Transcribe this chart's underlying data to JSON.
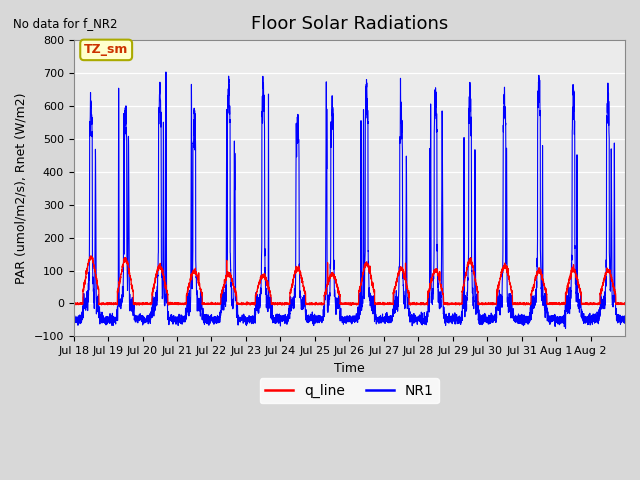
{
  "title": "Floor Solar Radiations",
  "xlabel": "Time",
  "ylabel": "PAR (umol/m2/s), Rnet (W/m2)",
  "ylim": [
    -100,
    800
  ],
  "yticks": [
    -100,
    0,
    100,
    200,
    300,
    400,
    500,
    600,
    700,
    800
  ],
  "xtick_labels": [
    "Jul 18",
    "Jul 19",
    "Jul 20",
    "Jul 21",
    "Jul 22",
    "Jul 23",
    "Jul 24",
    "Jul 25",
    "Jul 26",
    "Jul 27",
    "Jul 28",
    "Jul 29",
    "Jul 30",
    "Jul 31",
    "Aug 1",
    "Aug 2"
  ],
  "no_data_text": "No data for f_NR2",
  "legend_box_text": "TZ_sm",
  "legend_box_color": "#ffffcc",
  "legend_box_edge": "#aaaa00",
  "line_color_red": "#ff0000",
  "line_color_blue": "#0000ff",
  "legend_red_label": "q_line",
  "legend_blue_label": "NR1",
  "n_days": 16,
  "points_per_day": 288,
  "peak_blue": 670,
  "peak_red": 120,
  "trough_blue": -55,
  "trough_red": 0
}
